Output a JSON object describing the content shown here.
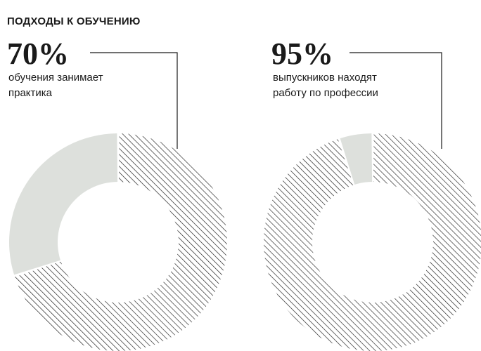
{
  "heading": "ПОДХОДЫ К ОБУЧЕНИЮ",
  "colors": {
    "hatch": "#1a1a1a",
    "rest": "#dde0dc",
    "leader": "#1a1a1a"
  },
  "chart_data": [
    {
      "type": "pie",
      "donut": true,
      "big_value": "70%",
      "caption_line1": "обучения занимает",
      "caption_line2": "практика",
      "slices": [
        {
          "value": 70,
          "fill": "hatch"
        },
        {
          "value": 30,
          "fill": "rest"
        }
      ]
    },
    {
      "type": "pie",
      "donut": true,
      "big_value": "95%",
      "caption_line1": "выпускников находят",
      "caption_line2": "работу по профессии",
      "slices": [
        {
          "value": 95,
          "fill": "hatch"
        },
        {
          "value": 5,
          "fill": "rest"
        }
      ]
    }
  ]
}
